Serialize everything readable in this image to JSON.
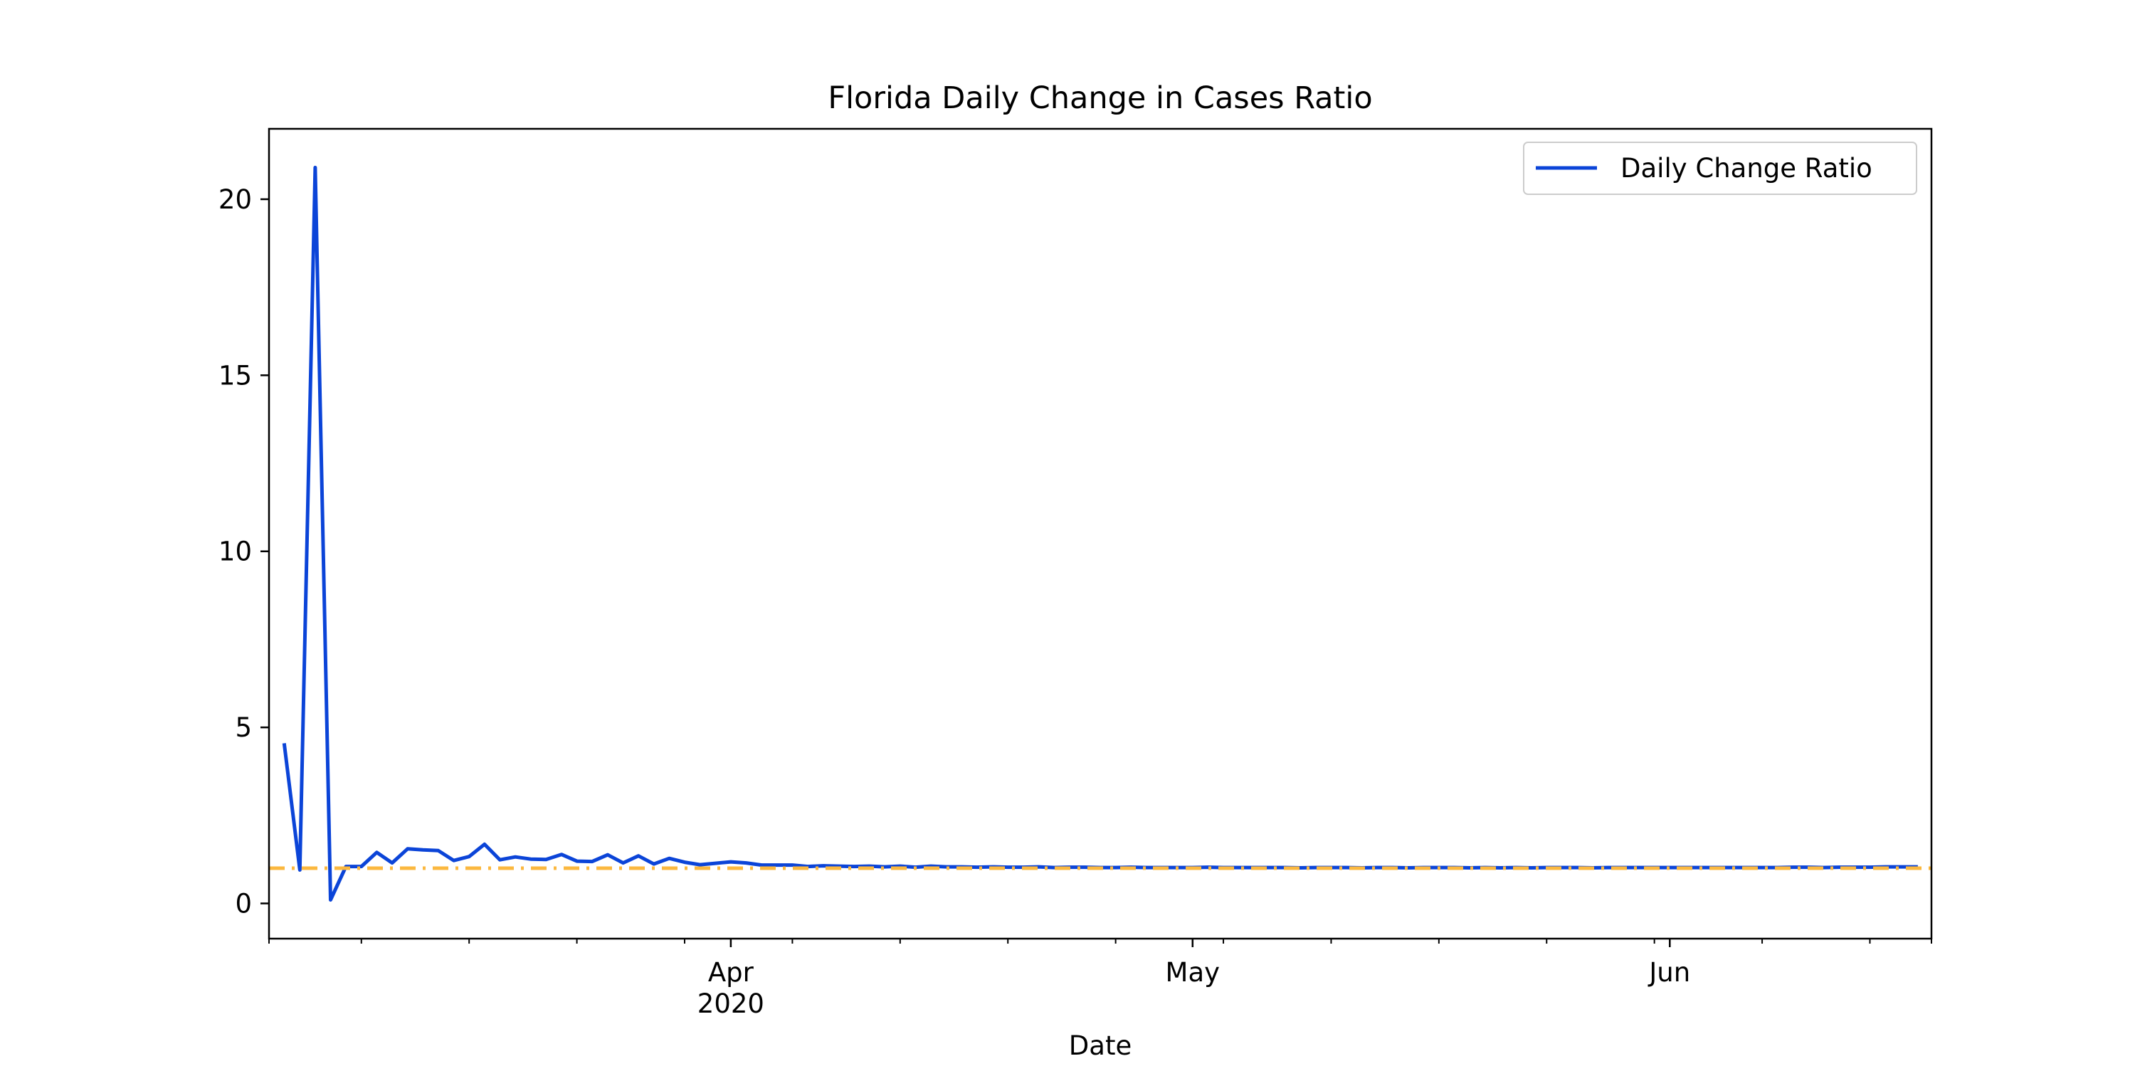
{
  "chart_data": {
    "type": "line",
    "title": "Florida Daily Change in Cases Ratio",
    "xlabel": "Date",
    "ylabel": "",
    "xlim": [
      "2020-03-02",
      "2020-06-18"
    ],
    "ylim": [
      -1,
      22
    ],
    "grid": false,
    "legend_position": "top-right",
    "x_ticks": [
      {
        "date": "2020-04-01",
        "label": "Apr",
        "sublabel": "2020"
      },
      {
        "date": "2020-05-01",
        "label": "May",
        "sublabel": ""
      },
      {
        "date": "2020-06-01",
        "label": "Jun",
        "sublabel": ""
      }
    ],
    "y_ticks": [
      0,
      5,
      10,
      15,
      20
    ],
    "series": [
      {
        "name": "Daily Change Ratio",
        "color": "#0b44d8",
        "style": "solid",
        "start_date": "2020-03-03",
        "values": [
          4.5,
          0.95,
          20.9,
          0.1,
          1.05,
          1.05,
          1.45,
          1.15,
          1.55,
          1.52,
          1.5,
          1.22,
          1.33,
          1.68,
          1.24,
          1.32,
          1.26,
          1.25,
          1.39,
          1.2,
          1.19,
          1.38,
          1.15,
          1.35,
          1.12,
          1.28,
          1.17,
          1.1,
          1.14,
          1.18,
          1.15,
          1.09,
          1.09,
          1.09,
          1.05,
          1.07,
          1.06,
          1.05,
          1.06,
          1.04,
          1.06,
          1.03,
          1.06,
          1.04,
          1.04,
          1.03,
          1.04,
          1.03,
          1.03,
          1.04,
          1.02,
          1.03,
          1.03,
          1.02,
          1.02,
          1.03,
          1.02,
          1.02,
          1.02,
          1.02,
          1.03,
          1.02,
          1.02,
          1.02,
          1.02,
          1.02,
          1.01,
          1.02,
          1.02,
          1.02,
          1.01,
          1.02,
          1.02,
          1.01,
          1.02,
          1.02,
          1.02,
          1.01,
          1.02,
          1.01,
          1.02,
          1.01,
          1.02,
          1.02,
          1.02,
          1.01,
          1.02,
          1.02,
          1.02,
          1.02,
          1.02,
          1.02,
          1.02,
          1.02,
          1.02,
          1.02,
          1.02,
          1.02,
          1.03,
          1.03,
          1.02,
          1.03,
          1.03,
          1.03,
          1.04,
          1.04,
          1.04
        ]
      }
    ],
    "reference_line": {
      "y": 1,
      "color": "#fbb83f",
      "style": "dashdot"
    }
  }
}
